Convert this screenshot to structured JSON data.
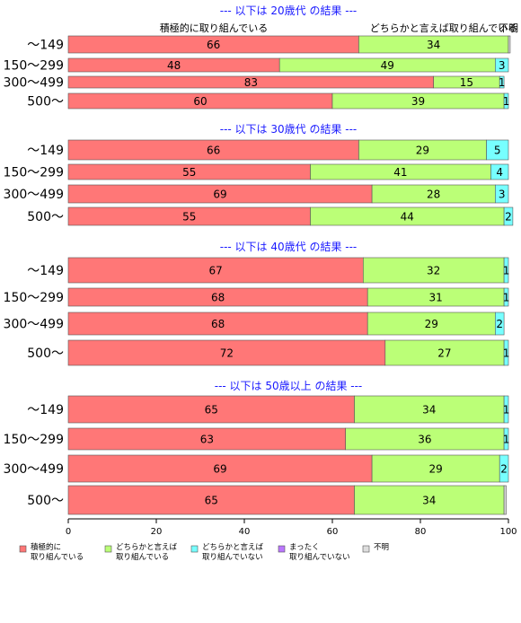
{
  "chart_data": {
    "type": "bar",
    "orientation": "horizontal",
    "stacked": true,
    "xlim": [
      0,
      100
    ],
    "x_ticks": [
      "0",
      "20",
      "40",
      "60",
      "80",
      "100"
    ],
    "column_labels": [
      "積極的に取り組んでいる",
      "どちらかと言えば取り組んでいる",
      "不明"
    ],
    "legend": [
      {
        "key": "active",
        "label_line1": "積極的に",
        "label_line2": "取り組んでいる",
        "color": "#ff7777"
      },
      {
        "key": "somewhat",
        "label_line1": "どちらかと言えば",
        "label_line2": "取り組んでいる",
        "color": "#bbff77"
      },
      {
        "key": "somewhat_not",
        "label_line1": "どちらかと言えば",
        "label_line2": "取り組んでいない",
        "color": "#77ffff"
      },
      {
        "key": "not_at_all",
        "label_line1": "まったく",
        "label_line2": "取り組んでいない",
        "color": "#bb77ff"
      },
      {
        "key": "unknown",
        "label_line1": "不明",
        "label_line2": "",
        "color": "#dddddd"
      }
    ],
    "groups": [
      {
        "title": "--- 以下は 20歳代 の結果 ---",
        "rows": [
          {
            "category": "～149",
            "values": [
              66,
              34,
              0,
              0,
              0.4
            ],
            "labels": [
              "66",
              "34",
              "",
              "",
              ""
            ]
          },
          {
            "category": "150～299",
            "values": [
              48,
              49,
              3,
              0,
              0
            ],
            "labels": [
              "48",
              "49",
              "3",
              "",
              ""
            ]
          },
          {
            "category": "300～499",
            "values": [
              83,
              15,
              1,
              0,
              0
            ],
            "labels": [
              "83",
              "15",
              "1",
              "",
              ""
            ]
          },
          {
            "category": "500～",
            "values": [
              60,
              39,
              1,
              0,
              0
            ],
            "labels": [
              "60",
              "39",
              "1",
              "",
              ""
            ]
          }
        ]
      },
      {
        "title": "--- 以下は 30歳代 の結果 ---",
        "rows": [
          {
            "category": "～149",
            "values": [
              66,
              29,
              5,
              0,
              0
            ],
            "labels": [
              "66",
              "29",
              "5",
              "",
              ""
            ]
          },
          {
            "category": "150～299",
            "values": [
              55,
              41,
              4,
              0,
              0
            ],
            "labels": [
              "55",
              "41",
              "4",
              "",
              ""
            ]
          },
          {
            "category": "300～499",
            "values": [
              69,
              28,
              3,
              0,
              0
            ],
            "labels": [
              "69",
              "28",
              "3",
              "",
              ""
            ]
          },
          {
            "category": "500～",
            "values": [
              55,
              44,
              2,
              0,
              0
            ],
            "labels": [
              "55",
              "44",
              "2",
              "",
              ""
            ]
          }
        ]
      },
      {
        "title": "--- 以下は 40歳代 の結果 ---",
        "rows": [
          {
            "category": "～149",
            "values": [
              67,
              32,
              1,
              0,
              0
            ],
            "labels": [
              "67",
              "32",
              "1",
              "",
              ""
            ]
          },
          {
            "category": "150～299",
            "values": [
              68,
              31,
              1,
              0,
              0
            ],
            "labels": [
              "68",
              "31",
              "1",
              "",
              ""
            ]
          },
          {
            "category": "300～499",
            "values": [
              68,
              29,
              2,
              0,
              0
            ],
            "labels": [
              "68",
              "29",
              "2",
              "",
              ""
            ]
          },
          {
            "category": "500～",
            "values": [
              72,
              27,
              1,
              0,
              0
            ],
            "labels": [
              "72",
              "27",
              "1",
              "",
              ""
            ]
          }
        ]
      },
      {
        "title": "--- 以下は 50歳以上 の結果 ---",
        "rows": [
          {
            "category": "～149",
            "values": [
              65,
              34,
              1,
              0,
              0
            ],
            "labels": [
              "65",
              "34",
              "1",
              "",
              ""
            ]
          },
          {
            "category": "150～299",
            "values": [
              63,
              36,
              1,
              0,
              0
            ],
            "labels": [
              "63",
              "36",
              "1",
              "",
              ""
            ]
          },
          {
            "category": "300～499",
            "values": [
              69,
              29,
              2,
              0,
              0
            ],
            "labels": [
              "69",
              "29",
              "2",
              "",
              ""
            ]
          },
          {
            "category": "500～",
            "values": [
              65,
              34,
              0,
              0,
              0.5
            ],
            "labels": [
              "65",
              "34",
              "",
              "",
              ""
            ]
          }
        ]
      }
    ]
  }
}
